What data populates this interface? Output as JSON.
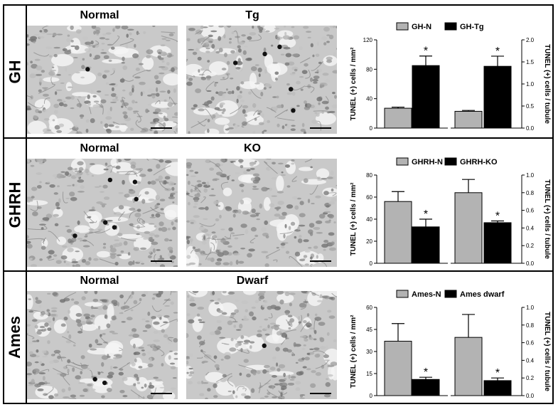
{
  "rows": [
    {
      "label": "GH",
      "left_title": "Normal",
      "right_title": "Tg",
      "chart_data": {
        "type": "bar",
        "legend": [
          "GH-N",
          "GH-Tg"
        ],
        "legend_placement": "top",
        "series_colors": [
          "#b3b3b3",
          "#000000"
        ],
        "left_panel": {
          "ylabel": "TUNEL (+) cells / mm²",
          "ylim": [
            0,
            120
          ],
          "ticks": [
            "0",
            "40",
            "80",
            "120"
          ],
          "values": [
            27,
            85
          ],
          "errors": [
            1.5,
            13
          ],
          "significance": [
            "",
            "*"
          ]
        },
        "right_panel": {
          "ylabel": "TUNEL (+) cells / tubule",
          "ylim": [
            0,
            2.0
          ],
          "ticks": [
            "0.0",
            "0.5",
            "1.0",
            "1.5",
            "2.0"
          ],
          "values": [
            0.38,
            1.4
          ],
          "errors": [
            0.02,
            0.23
          ],
          "significance": [
            "",
            "*"
          ]
        }
      }
    },
    {
      "label": "GHRH",
      "left_title": "Normal",
      "right_title": "KO",
      "chart_data": {
        "type": "bar",
        "legend": [
          "GHRH-N",
          "GHRH-KO"
        ],
        "legend_placement": "top",
        "series_colors": [
          "#b3b3b3",
          "#000000"
        ],
        "left_panel": {
          "ylabel": "TUNEL (+) cells / mm²",
          "ylim": [
            0,
            80
          ],
          "ticks": [
            "0",
            "20",
            "40",
            "60",
            "80"
          ],
          "values": [
            56,
            33
          ],
          "errors": [
            9,
            7
          ],
          "significance": [
            "",
            "*"
          ]
        },
        "right_panel": {
          "ylabel": "TUNEL (+) cells / tubule",
          "ylim": [
            0,
            1.0
          ],
          "ticks": [
            "0.0",
            "0.2",
            "0.4",
            "0.6",
            "0.8",
            "1.0"
          ],
          "values": [
            0.8,
            0.46
          ],
          "errors": [
            0.15,
            0.02
          ],
          "significance": [
            "",
            "*"
          ]
        }
      }
    },
    {
      "label": "Ames",
      "left_title": "Normal",
      "right_title": "Dwarf",
      "chart_data": {
        "type": "bar",
        "legend": [
          "Ames-N",
          "Ames dwarf"
        ],
        "legend_placement": "top",
        "series_colors": [
          "#b3b3b3",
          "#000000"
        ],
        "left_panel": {
          "ylabel": "TUNEL (+) cells / mm²",
          "ylim": [
            0,
            60
          ],
          "ticks": [
            "0",
            "15",
            "30",
            "45",
            "60"
          ],
          "values": [
            37,
            11
          ],
          "errors": [
            12,
            1.5
          ],
          "significance": [
            "",
            "*"
          ]
        },
        "right_panel": {
          "ylabel": "TUNEL (+) cells / tubule",
          "ylim": [
            0,
            1.0
          ],
          "ticks": [
            "0.0",
            "0.2",
            "0.4",
            "0.6",
            "0.8",
            "1.0"
          ],
          "values": [
            0.66,
            0.17
          ],
          "errors": [
            0.26,
            0.03
          ],
          "significance": [
            "",
            "*"
          ]
        }
      }
    }
  ]
}
